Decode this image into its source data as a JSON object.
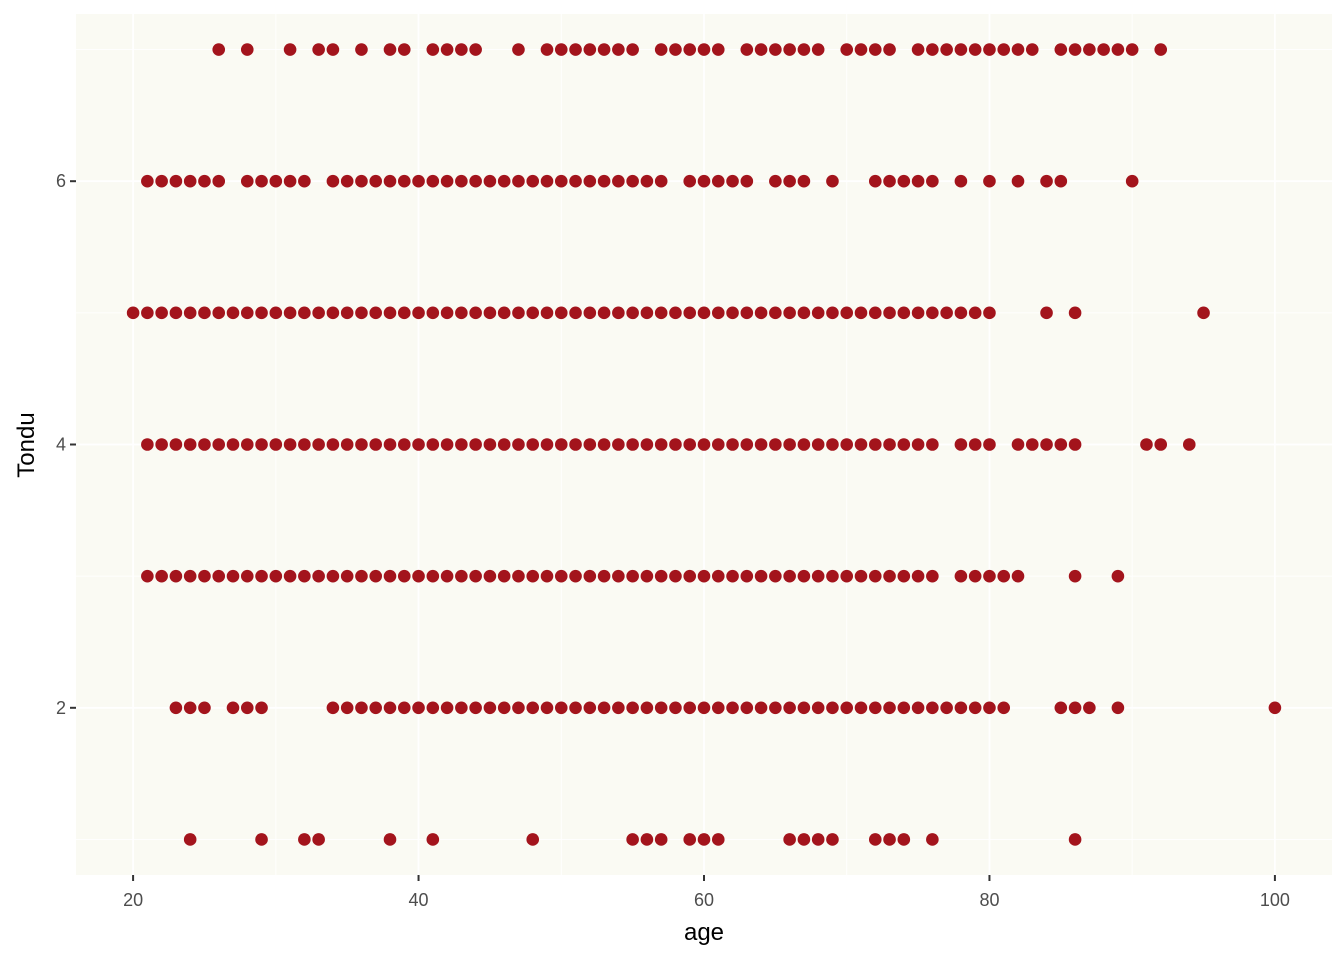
{
  "chart_data": {
    "type": "scatter",
    "title": "",
    "xlabel": "age",
    "ylabel": "Tondu",
    "xlim": [
      16,
      104
    ],
    "ylim": [
      0.73,
      7.27
    ],
    "x_ticks": [
      20,
      40,
      60,
      80,
      100
    ],
    "y_ticks": [
      2,
      4,
      6
    ],
    "grid": true,
    "legend": "none",
    "colors": {
      "panel": "#FAFAF3",
      "grid": "#FFFFFF",
      "point": "#A3141C",
      "tick_text": "#4D4D4D",
      "tick_mark": "#333333"
    },
    "series": [
      {
        "y": 7,
        "x": [
          26,
          28,
          31,
          33,
          34,
          36,
          38,
          39,
          41,
          42,
          43,
          44,
          47,
          49,
          50,
          51,
          52,
          53,
          54,
          55,
          57,
          58,
          59,
          60,
          61,
          63,
          64,
          65,
          66,
          67,
          68,
          70,
          71,
          72,
          73,
          75,
          76,
          77,
          78,
          79,
          80,
          81,
          82,
          83,
          85,
          86,
          87,
          88,
          89,
          90,
          92
        ]
      },
      {
        "y": 6,
        "x": [
          21,
          22,
          23,
          24,
          25,
          26,
          28,
          29,
          30,
          31,
          32,
          34,
          35,
          36,
          37,
          38,
          39,
          40,
          41,
          42,
          43,
          44,
          45,
          46,
          47,
          48,
          49,
          50,
          51,
          52,
          53,
          54,
          55,
          56,
          57,
          59,
          60,
          61,
          62,
          63,
          65,
          66,
          67,
          69,
          72,
          73,
          74,
          75,
          76,
          78,
          80,
          82,
          84,
          85,
          90
        ]
      },
      {
        "y": 5,
        "x": [
          20,
          21,
          22,
          23,
          24,
          25,
          26,
          27,
          28,
          29,
          30,
          31,
          32,
          33,
          34,
          35,
          36,
          37,
          38,
          39,
          40,
          41,
          42,
          43,
          44,
          45,
          46,
          47,
          48,
          49,
          50,
          51,
          52,
          53,
          54,
          55,
          56,
          57,
          58,
          59,
          60,
          61,
          62,
          63,
          64,
          65,
          66,
          67,
          68,
          69,
          70,
          71,
          72,
          73,
          74,
          75,
          76,
          77,
          78,
          79,
          80,
          84,
          86,
          95
        ]
      },
      {
        "y": 4,
        "x": [
          21,
          22,
          23,
          24,
          25,
          26,
          27,
          28,
          29,
          30,
          31,
          32,
          33,
          34,
          35,
          36,
          37,
          38,
          39,
          40,
          41,
          42,
          43,
          44,
          45,
          46,
          47,
          48,
          49,
          50,
          51,
          52,
          53,
          54,
          55,
          56,
          57,
          58,
          59,
          60,
          61,
          62,
          63,
          64,
          65,
          66,
          67,
          68,
          69,
          70,
          71,
          72,
          73,
          74,
          75,
          76,
          78,
          79,
          80,
          82,
          83,
          84,
          85,
          86,
          91,
          92,
          94
        ]
      },
      {
        "y": 3,
        "x": [
          21,
          22,
          23,
          24,
          25,
          26,
          27,
          28,
          29,
          30,
          31,
          32,
          33,
          34,
          35,
          36,
          37,
          38,
          39,
          40,
          41,
          42,
          43,
          44,
          45,
          46,
          47,
          48,
          49,
          50,
          51,
          52,
          53,
          54,
          55,
          56,
          57,
          58,
          59,
          60,
          61,
          62,
          63,
          64,
          65,
          66,
          67,
          68,
          69,
          70,
          71,
          72,
          73,
          74,
          75,
          76,
          78,
          79,
          80,
          81,
          82,
          86,
          89
        ]
      },
      {
        "y": 2,
        "x": [
          23,
          24,
          25,
          27,
          28,
          29,
          34,
          35,
          36,
          37,
          38,
          39,
          40,
          41,
          42,
          43,
          44,
          45,
          46,
          47,
          48,
          49,
          50,
          51,
          52,
          53,
          54,
          55,
          56,
          57,
          58,
          59,
          60,
          61,
          62,
          63,
          64,
          65,
          66,
          67,
          68,
          69,
          70,
          71,
          72,
          73,
          74,
          75,
          76,
          77,
          78,
          79,
          80,
          81,
          85,
          86,
          87,
          89,
          100
        ]
      },
      {
        "y": 1,
        "x": [
          24,
          29,
          32,
          33,
          38,
          41,
          48,
          55,
          56,
          57,
          59,
          60,
          61,
          66,
          67,
          68,
          69,
          72,
          73,
          74,
          76,
          86
        ]
      }
    ]
  }
}
